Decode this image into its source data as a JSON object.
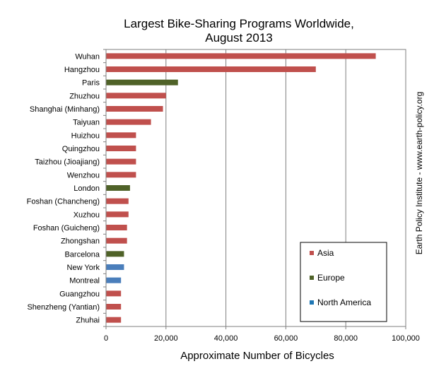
{
  "chart_data": {
    "type": "bar",
    "orientation": "horizontal",
    "title_lines": [
      "Largest Bike-Sharing Programs Worldwide,",
      "August 2013"
    ],
    "xlabel": "Approximate Number  of Bicycles",
    "ylabel": "",
    "xlim": [
      0,
      100000
    ],
    "x_ticks": [
      0,
      20000,
      40000,
      60000,
      80000,
      100000
    ],
    "x_tick_labels": [
      "0",
      "20,000",
      "40,000",
      "60,000",
      "80,000",
      "100,000"
    ],
    "grid": "vertical-major",
    "legend_position": "bottom-right",
    "source_note": "Earth Policy Institute - www.earth-policy.org",
    "legend": [
      {
        "name": "Asia",
        "color": "#c0504d"
      },
      {
        "name": "Europe",
        "color": "#4f6228"
      },
      {
        "name": "North America",
        "color": "#1f77b4"
      }
    ],
    "region_colors": {
      "Asia": "#c0504d",
      "Europe": "#4f6228",
      "North America": "#4a7ebb"
    },
    "categories": [
      "Wuhan",
      "Hangzhou",
      "Paris",
      "Zhuzhou",
      "Shanghai (Minhang)",
      "Taiyuan",
      "Huizhou",
      "Quingzhou",
      "Taizhou (Jioajiang)",
      "Wenzhou",
      "London",
      "Foshan (Chancheng)",
      "Xuzhou",
      "Foshan (Guicheng)",
      "Zhongshan",
      "Barcelona",
      "New York",
      "Montreal",
      "Guangzhou",
      "Shenzheng (Yantian)",
      "Zhuhai"
    ],
    "values": [
      90000,
      70000,
      24000,
      20000,
      19000,
      15000,
      10000,
      10000,
      10000,
      10000,
      8000,
      7500,
      7500,
      7000,
      7000,
      6000,
      6000,
      5000,
      5000,
      5000,
      5000
    ],
    "regions": [
      "Asia",
      "Asia",
      "Europe",
      "Asia",
      "Asia",
      "Asia",
      "Asia",
      "Asia",
      "Asia",
      "Asia",
      "Europe",
      "Asia",
      "Asia",
      "Asia",
      "Asia",
      "Europe",
      "North America",
      "North America",
      "Asia",
      "Asia",
      "Asia"
    ]
  }
}
